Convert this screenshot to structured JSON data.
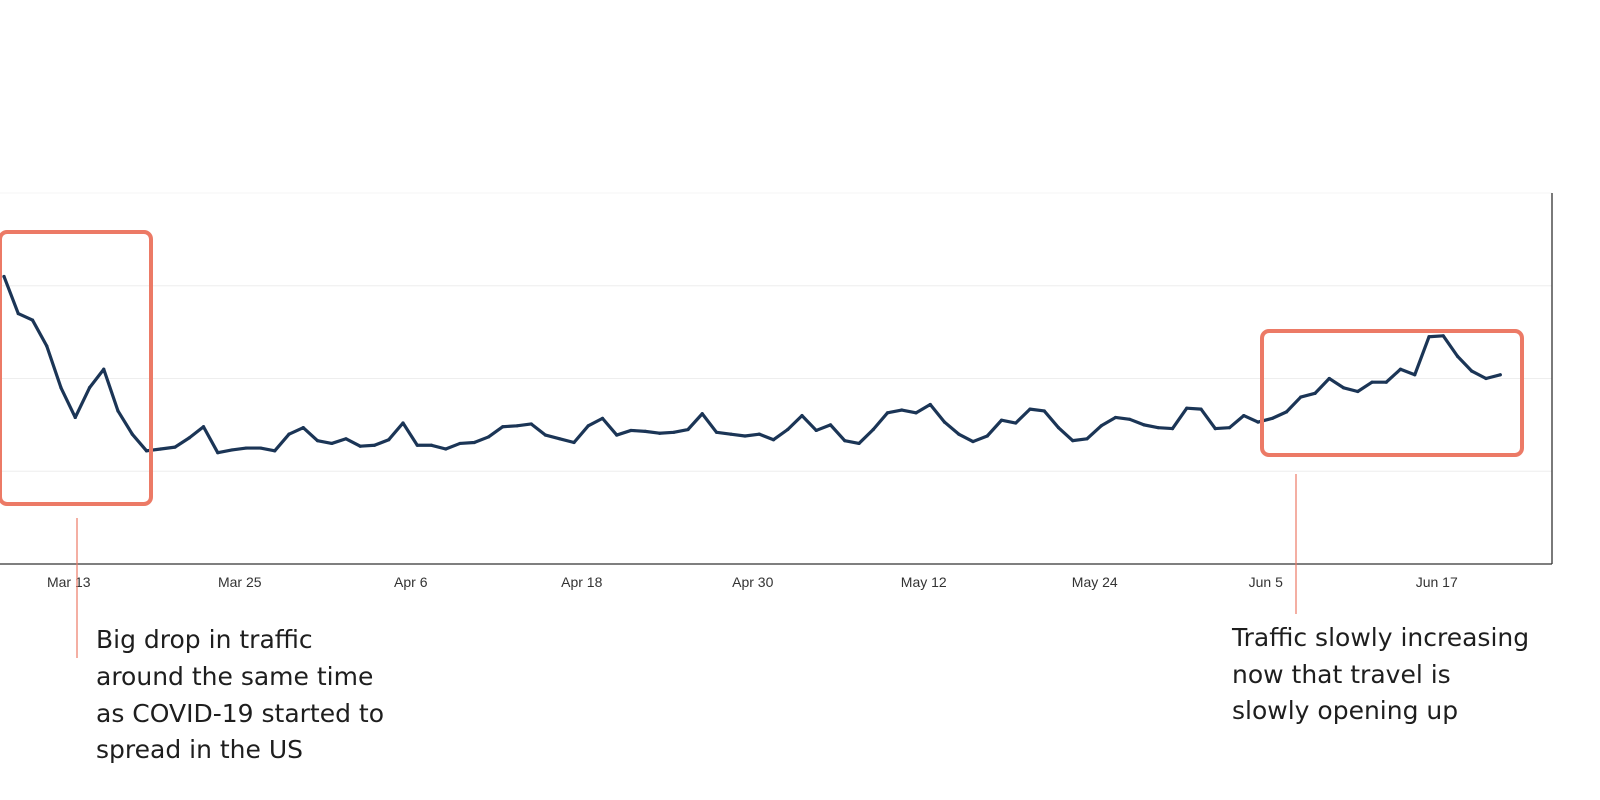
{
  "colors": {
    "line": "#1b3556",
    "highlight_box": "#ec7a66",
    "leader_line": "#ec7a66",
    "gridline": "#eeeeee",
    "axis": "#333333"
  },
  "chart_data": {
    "type": "line",
    "title": "",
    "xlabel": "",
    "ylabel": "",
    "x_tick_labels": [
      "Mar 13",
      "Mar 25",
      "Apr 6",
      "Apr 18",
      "Apr 30",
      "May 12",
      "May 24",
      "Jun 5",
      "Jun 17"
    ],
    "x_start": "Mar 10",
    "y_tick_labels_shown": false,
    "ylim": [
      0,
      4
    ],
    "gridlines": [
      1,
      2,
      3
    ],
    "legend": "none",
    "series": [
      {
        "values": [
          3.1,
          2.7,
          2.63,
          2.35,
          1.9,
          1.58,
          1.9,
          2.1,
          1.65,
          1.4,
          1.22,
          1.24,
          1.26,
          1.36,
          1.48,
          1.2,
          1.23,
          1.25,
          1.25,
          1.22,
          1.4,
          1.47,
          1.33,
          1.3,
          1.35,
          1.27,
          1.28,
          1.34,
          1.52,
          1.28,
          1.28,
          1.24,
          1.3,
          1.31,
          1.37,
          1.48,
          1.49,
          1.51,
          1.39,
          1.35,
          1.31,
          1.49,
          1.57,
          1.39,
          1.44,
          1.43,
          1.41,
          1.42,
          1.45,
          1.62,
          1.42,
          1.4,
          1.38,
          1.4,
          1.34,
          1.45,
          1.6,
          1.44,
          1.5,
          1.33,
          1.3,
          1.45,
          1.63,
          1.66,
          1.63,
          1.72,
          1.53,
          1.4,
          1.32,
          1.38,
          1.55,
          1.52,
          1.67,
          1.65,
          1.47,
          1.33,
          1.35,
          1.49,
          1.58,
          1.56,
          1.5,
          1.47,
          1.46,
          1.68,
          1.67,
          1.46,
          1.47,
          1.6,
          1.53,
          1.57,
          1.64,
          1.8,
          1.84,
          2.0,
          1.9,
          1.86,
          1.96,
          1.96,
          2.1,
          2.04,
          2.45,
          2.46,
          2.24,
          2.08,
          2.0,
          2.04
        ]
      }
    ]
  },
  "annotations": {
    "left_text": [
      "Big drop in traffic",
      "around the same time",
      "as COVID-19 started to",
      "spread in the US"
    ],
    "right_text": [
      "Traffic slowly increasing",
      "now that travel is",
      "slowly opening up"
    ]
  }
}
